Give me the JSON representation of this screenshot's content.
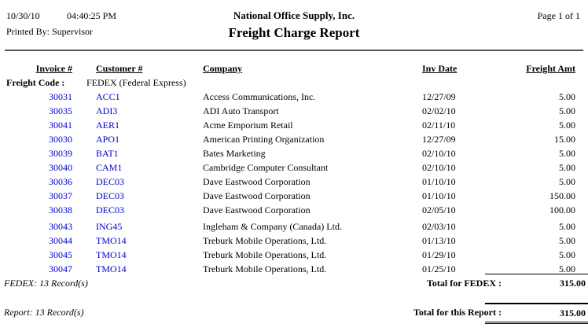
{
  "header": {
    "date": "10/30/10",
    "time": "04:40:25 PM",
    "printed_by": "Printed By: Supervisor",
    "company_name": "National Office Supply, Inc.",
    "report_title": "Freight Charge Report",
    "page_indicator": "Page 1 of 1"
  },
  "table": {
    "columns": {
      "invoice": "Invoice #",
      "customer": "Customer #",
      "company": "Company",
      "inv_date": "Inv Date",
      "amount": "Freight Amt"
    },
    "group": {
      "label": "Freight Code :",
      "value": "FEDEX (Federal Express)"
    },
    "rows": [
      {
        "invoice": "30031",
        "customer": "ACC1",
        "company": "Access Communications, Inc.",
        "inv_date": "12/27/09",
        "amount": "5.00"
      },
      {
        "invoice": "30035",
        "customer": "ADI3",
        "company": "ADI Auto Transport",
        "inv_date": "02/02/10",
        "amount": "5.00"
      },
      {
        "invoice": "30041",
        "customer": "AER1",
        "company": "Acme Emporium Retail",
        "inv_date": "02/11/10",
        "amount": "5.00"
      },
      {
        "invoice": "30030",
        "customer": "APO1",
        "company": "American Printing Organization",
        "inv_date": "12/27/09",
        "amount": "15.00"
      },
      {
        "invoice": "30039",
        "customer": "BAT1",
        "company": "Bates Marketing",
        "inv_date": "02/10/10",
        "amount": "5.00"
      },
      {
        "invoice": "30040",
        "customer": "CAM1",
        "company": "Cambridge Computer Consultant",
        "inv_date": "02/10/10",
        "amount": "5.00"
      },
      {
        "invoice": "30036",
        "customer": "DEC03",
        "company": "Dave Eastwood Corporation",
        "inv_date": "01/10/10",
        "amount": "5.00"
      },
      {
        "invoice": "30037",
        "customer": "DEC03",
        "company": "Dave Eastwood Corporation",
        "inv_date": "01/10/10",
        "amount": "150.00"
      },
      {
        "invoice": "30038",
        "customer": "DEC03",
        "company": "Dave Eastwood Corporation",
        "inv_date": "02/05/10",
        "amount": "100.00"
      },
      {
        "invoice": "30043",
        "customer": "ING45",
        "company": "Ingleham & Company (Canada) Ltd.",
        "inv_date": "02/03/10",
        "amount": "5.00"
      },
      {
        "invoice": "30044",
        "customer": "TMO14",
        "company": "Treburk Mobile Operations, Ltd.",
        "inv_date": "01/13/10",
        "amount": "5.00"
      },
      {
        "invoice": "30045",
        "customer": "TMO14",
        "company": "Treburk Mobile Operations, Ltd.",
        "inv_date": "01/29/10",
        "amount": "5.00"
      },
      {
        "invoice": "30047",
        "customer": "TMO14",
        "company": "Treburk Mobile Operations, Ltd.",
        "inv_date": "01/25/10",
        "amount": "5.00"
      }
    ]
  },
  "footer": {
    "group_record_count": "FEDEX: 13 Record(s)",
    "group_total_label": "Total for FEDEX :",
    "group_total_amount": "315.00",
    "report_record_count": "Report: 13 Record(s)",
    "report_total_label": "Total for this Report :",
    "report_total_amount": "315.00"
  },
  "colors": {
    "link_blue": "#0000CC",
    "text": "#000000",
    "background": "#FFFFFF",
    "header_rule": "#555555"
  }
}
